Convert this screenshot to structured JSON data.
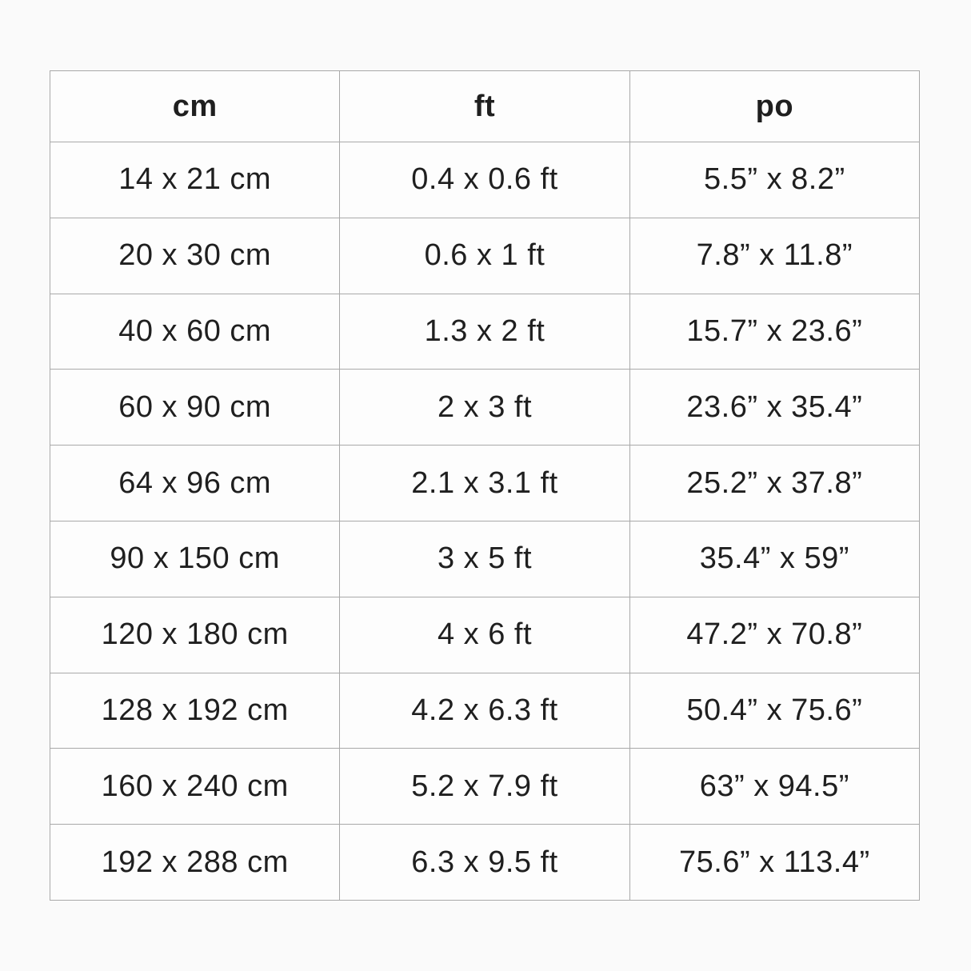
{
  "chart_data": {
    "type": "table",
    "title": "",
    "columns": [
      "cm",
      "ft",
      "po"
    ],
    "rows": [
      [
        "14 x 21 cm",
        "0.4 x 0.6 ft",
        "5.5” x 8.2”"
      ],
      [
        "20 x 30 cm",
        "0.6 x 1 ft",
        "7.8” x 11.8”"
      ],
      [
        "40 x 60 cm",
        "1.3 x 2 ft",
        "15.7” x 23.6”"
      ],
      [
        "60 x 90 cm",
        "2 x 3 ft",
        "23.6” x 35.4”"
      ],
      [
        "64 x 96 cm",
        "2.1 x 3.1 ft",
        "25.2” x 37.8”"
      ],
      [
        "90 x 150 cm",
        "3 x 5 ft",
        "35.4” x 59”"
      ],
      [
        "120 x 180 cm",
        "4 x 6 ft",
        "47.2” x 70.8”"
      ],
      [
        "128 x 192 cm",
        "4.2 x 6.3 ft",
        "50.4” x 75.6”"
      ],
      [
        "160 x 240 cm",
        "5.2 x 7.9 ft",
        "63” x 94.5”"
      ],
      [
        "192 x 288 cm",
        "6.3 x 9.5 ft",
        "75.6” x 113.4”"
      ]
    ]
  }
}
